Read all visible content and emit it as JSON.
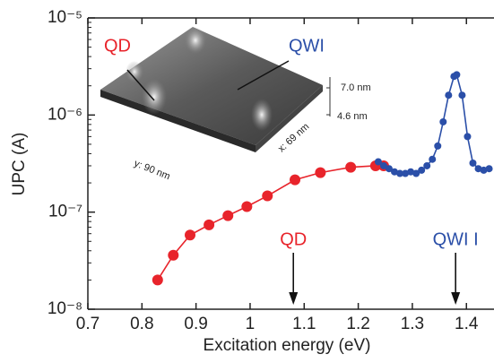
{
  "chart_data": {
    "type": "line",
    "x_label": "Excitation energy (eV)",
    "y_label": "UPC (A)",
    "log_y": true,
    "xlim": [
      0.7,
      1.451
    ],
    "ylim": [
      1e-08,
      1e-05
    ],
    "xticks": [
      0.7,
      0.8,
      0.9,
      1,
      1.1,
      1.2,
      1.3,
      1.4
    ],
    "yticks": [
      {
        "value": 1e-08,
        "label": "10⁻⁸"
      },
      {
        "value": 1e-07,
        "label": "10⁻⁷"
      },
      {
        "value": 1e-06,
        "label": "10⁻⁶"
      },
      {
        "value": 1e-05,
        "label": "10⁻⁵"
      }
    ],
    "series": [
      {
        "color": "#e8242b",
        "x": [
          0.829,
          0.858,
          0.889,
          0.924,
          0.959,
          0.994,
          1.032,
          1.083,
          1.13,
          1.186,
          1.232,
          1.247
        ],
        "values": [
          2e-08,
          3.6e-08,
          5.8e-08,
          7.4e-08,
          9.2e-08,
          1.14e-07,
          1.47e-07,
          2.15e-07,
          2.55e-07,
          2.9e-07,
          3e-07,
          3e-07
        ]
      },
      {
        "color": "#2b4fa8",
        "x": [
          1.237,
          1.247,
          1.257,
          1.267,
          1.277,
          1.287,
          1.297,
          1.307,
          1.317,
          1.327,
          1.337,
          1.347,
          1.357,
          1.367,
          1.377,
          1.382,
          1.392,
          1.402,
          1.412,
          1.422,
          1.432,
          1.442
        ],
        "values": [
          3.3e-07,
          3e-07,
          2.8e-07,
          2.6e-07,
          2.5e-07,
          2.5e-07,
          2.6e-07,
          2.5e-07,
          2.7e-07,
          3e-07,
          3.5e-07,
          4.8e-07,
          8.5e-07,
          1.6e-06,
          2.5e-06,
          2.6e-06,
          1.6e-06,
          6e-07,
          3.2e-07,
          2.8e-07,
          2.7e-07,
          2.8e-07
        ]
      }
    ],
    "annotations": [
      {
        "text": "QD",
        "x": 1.08,
        "color": "#e8242b"
      },
      {
        "text": "QWI I",
        "x": 1.38,
        "color": "#2b4fa8"
      }
    ],
    "inset": {
      "label_qd": "QD",
      "label_qwi": "QWI",
      "scale_top": "7.0 nm",
      "scale_bottom": "4.6 nm",
      "y_size": "y: 90 nm",
      "x_size": "x: 69 nm"
    }
  }
}
